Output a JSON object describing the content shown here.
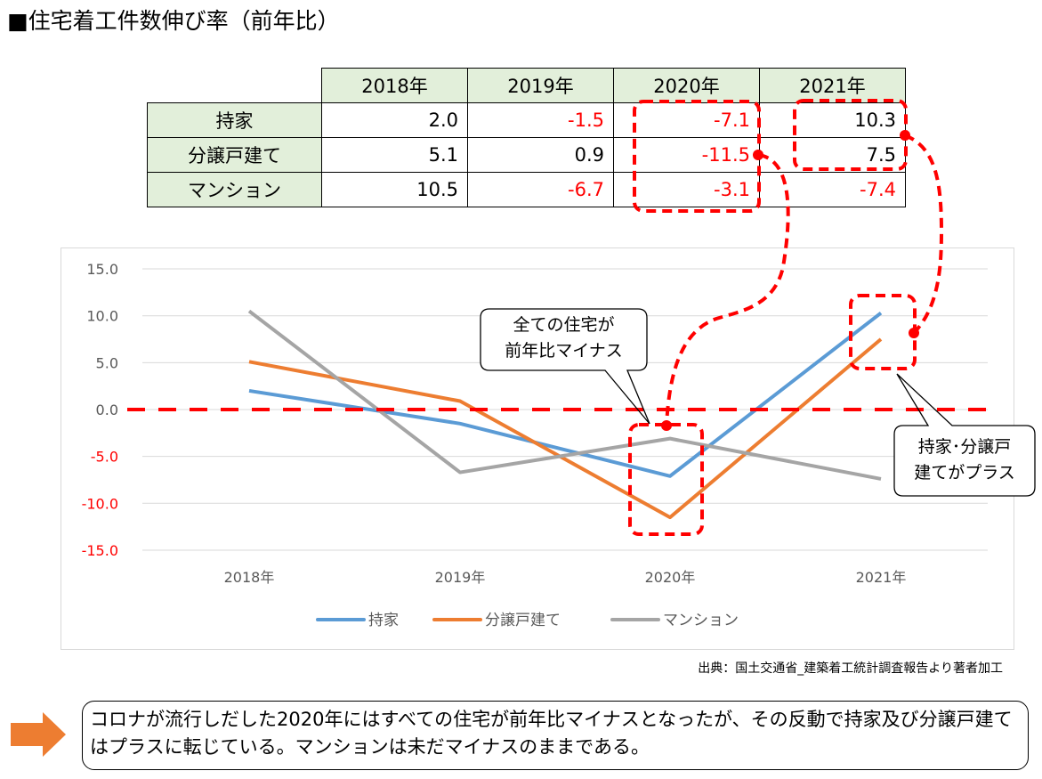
{
  "title": "■住宅着工件数伸び率（前年比）",
  "table": {
    "headers": [
      "2018年",
      "2019年",
      "2020年",
      "2021年"
    ],
    "rows": [
      {
        "label": "持家",
        "values": [
          "2.0",
          "-1.5",
          "-7.1",
          "10.3"
        ]
      },
      {
        "label": "分譲戸建て",
        "values": [
          "5.1",
          "0.9",
          "-11.5",
          "7.5"
        ]
      },
      {
        "label": "マンション",
        "values": [
          "10.5",
          "-6.7",
          "-3.1",
          "-7.4"
        ]
      }
    ]
  },
  "chart_data": {
    "type": "line",
    "categories": [
      "2018年",
      "2019年",
      "2020年",
      "2021年"
    ],
    "series": [
      {
        "name": "持家",
        "values": [
          2.0,
          -1.5,
          -7.1,
          10.3
        ],
        "color": "#5b9bd5"
      },
      {
        "name": "分譲戸建て",
        "values": [
          5.1,
          0.9,
          -11.5,
          7.5
        ],
        "color": "#ed7d31"
      },
      {
        "name": "マンション",
        "values": [
          10.5,
          -6.7,
          -3.1,
          -7.4
        ],
        "color": "#a5a5a5"
      }
    ],
    "yticks": [
      "15.0",
      "10.0",
      "5.0",
      "0.0",
      "-5.0",
      "-10.0",
      "-15.0"
    ],
    "ylim": [
      -15,
      15
    ],
    "grid": true,
    "legend": "bottom",
    "reference_line": {
      "value": 0,
      "color": "#ff0000",
      "style": "dashed"
    }
  },
  "annotations": {
    "callout_left": [
      "全ての住宅が",
      "前年比マイナス"
    ],
    "callout_right": [
      "持家･分譲戸",
      "建てがプラス"
    ]
  },
  "source": "出典：国土交通省_建築着工統計調査報告より著者加工",
  "summary": "コロナが流行しだした2020年にはすべての住宅が前年比マイナスとなったが、その反動で持家及び分譲戸建てはプラスに転じている。マンションは未だマイナスのままである。",
  "colors": {
    "accent": "#ff0000",
    "arrow": "#ed7d31",
    "header_bg": "#e2efda"
  }
}
